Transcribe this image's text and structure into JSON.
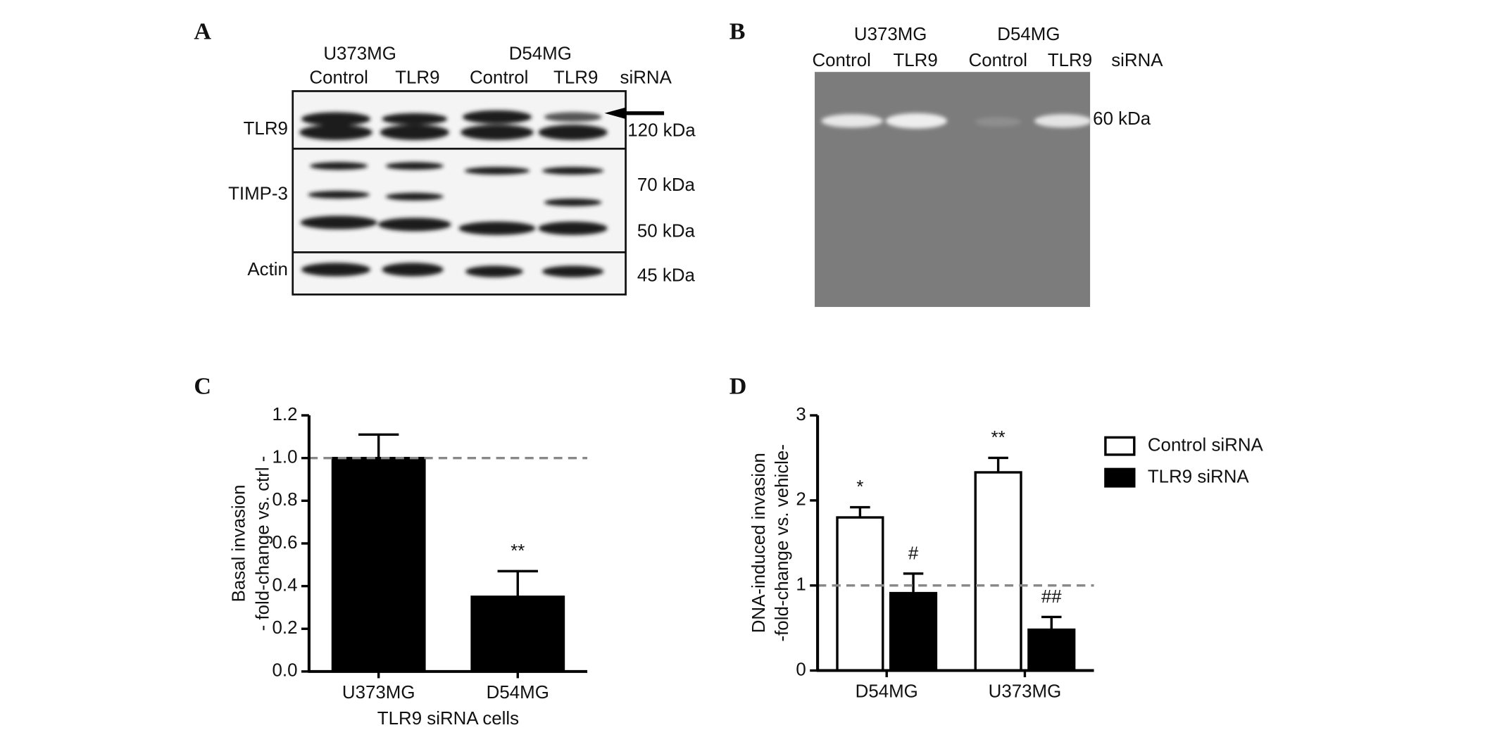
{
  "blots": [
    {
      "panel": "A",
      "cell_lines": [
        "U373MG",
        "D54MG"
      ],
      "lanes": [
        "Control",
        "TLR9",
        "Control",
        "TLR9"
      ],
      "treatment": "siRNA",
      "rows": [
        "TLR9",
        "TIMP-3",
        "Actin"
      ],
      "sizes": [
        "120 kDa",
        "70 kDa",
        "50 kDa",
        "45 kDa"
      ]
    },
    {
      "panel": "B",
      "cell_lines": [
        "U373MG",
        "D54MG"
      ],
      "lanes": [
        "Control",
        "TLR9",
        "Control",
        "TLR9"
      ],
      "treatment": "siRNA",
      "sizes": [
        "60 kDa"
      ]
    }
  ],
  "chart_data": [
    {
      "type": "bar",
      "panel": "C",
      "ylabel": [
        "Basal invasion",
        "- fold-change vs. ctrl -"
      ],
      "xlabel": "TLR9 siRNA cells",
      "categories": [
        "U373MG",
        "D54MG"
      ],
      "values": [
        1.0,
        0.35
      ],
      "errors": [
        0.11,
        0.12
      ],
      "markers": [
        null,
        "**"
      ],
      "color": "#000000",
      "ylim": [
        0,
        1.2
      ],
      "yticks": [
        {
          "value": 0,
          "label": "0.0"
        },
        0.2,
        0.4,
        0.6,
        0.8,
        {
          "value": 1,
          "label": "1.0"
        },
        1.2
      ],
      "reference_line": 1
    },
    {
      "type": "bar",
      "panel": "D",
      "ylabel": [
        "DNA-induced invasion",
        "-fold-change vs. vehicle-"
      ],
      "categories": [
        "D54MG",
        "U373MG"
      ],
      "series": [
        {
          "name": "Control siRNA",
          "color": "#ffffff",
          "values": [
            1.8,
            2.33
          ],
          "errors": [
            0.12,
            0.17
          ],
          "markers": [
            "*",
            "**"
          ]
        },
        {
          "name": "TLR9 siRNA",
          "color": "#000000",
          "values": [
            0.91,
            0.48
          ],
          "errors": [
            0.23,
            0.15
          ],
          "markers": [
            "#",
            "##"
          ]
        }
      ],
      "ylim": [
        0,
        3
      ],
      "yticks": [
        0,
        1,
        2,
        3
      ],
      "reference_line": 1,
      "legend": "right"
    }
  ]
}
